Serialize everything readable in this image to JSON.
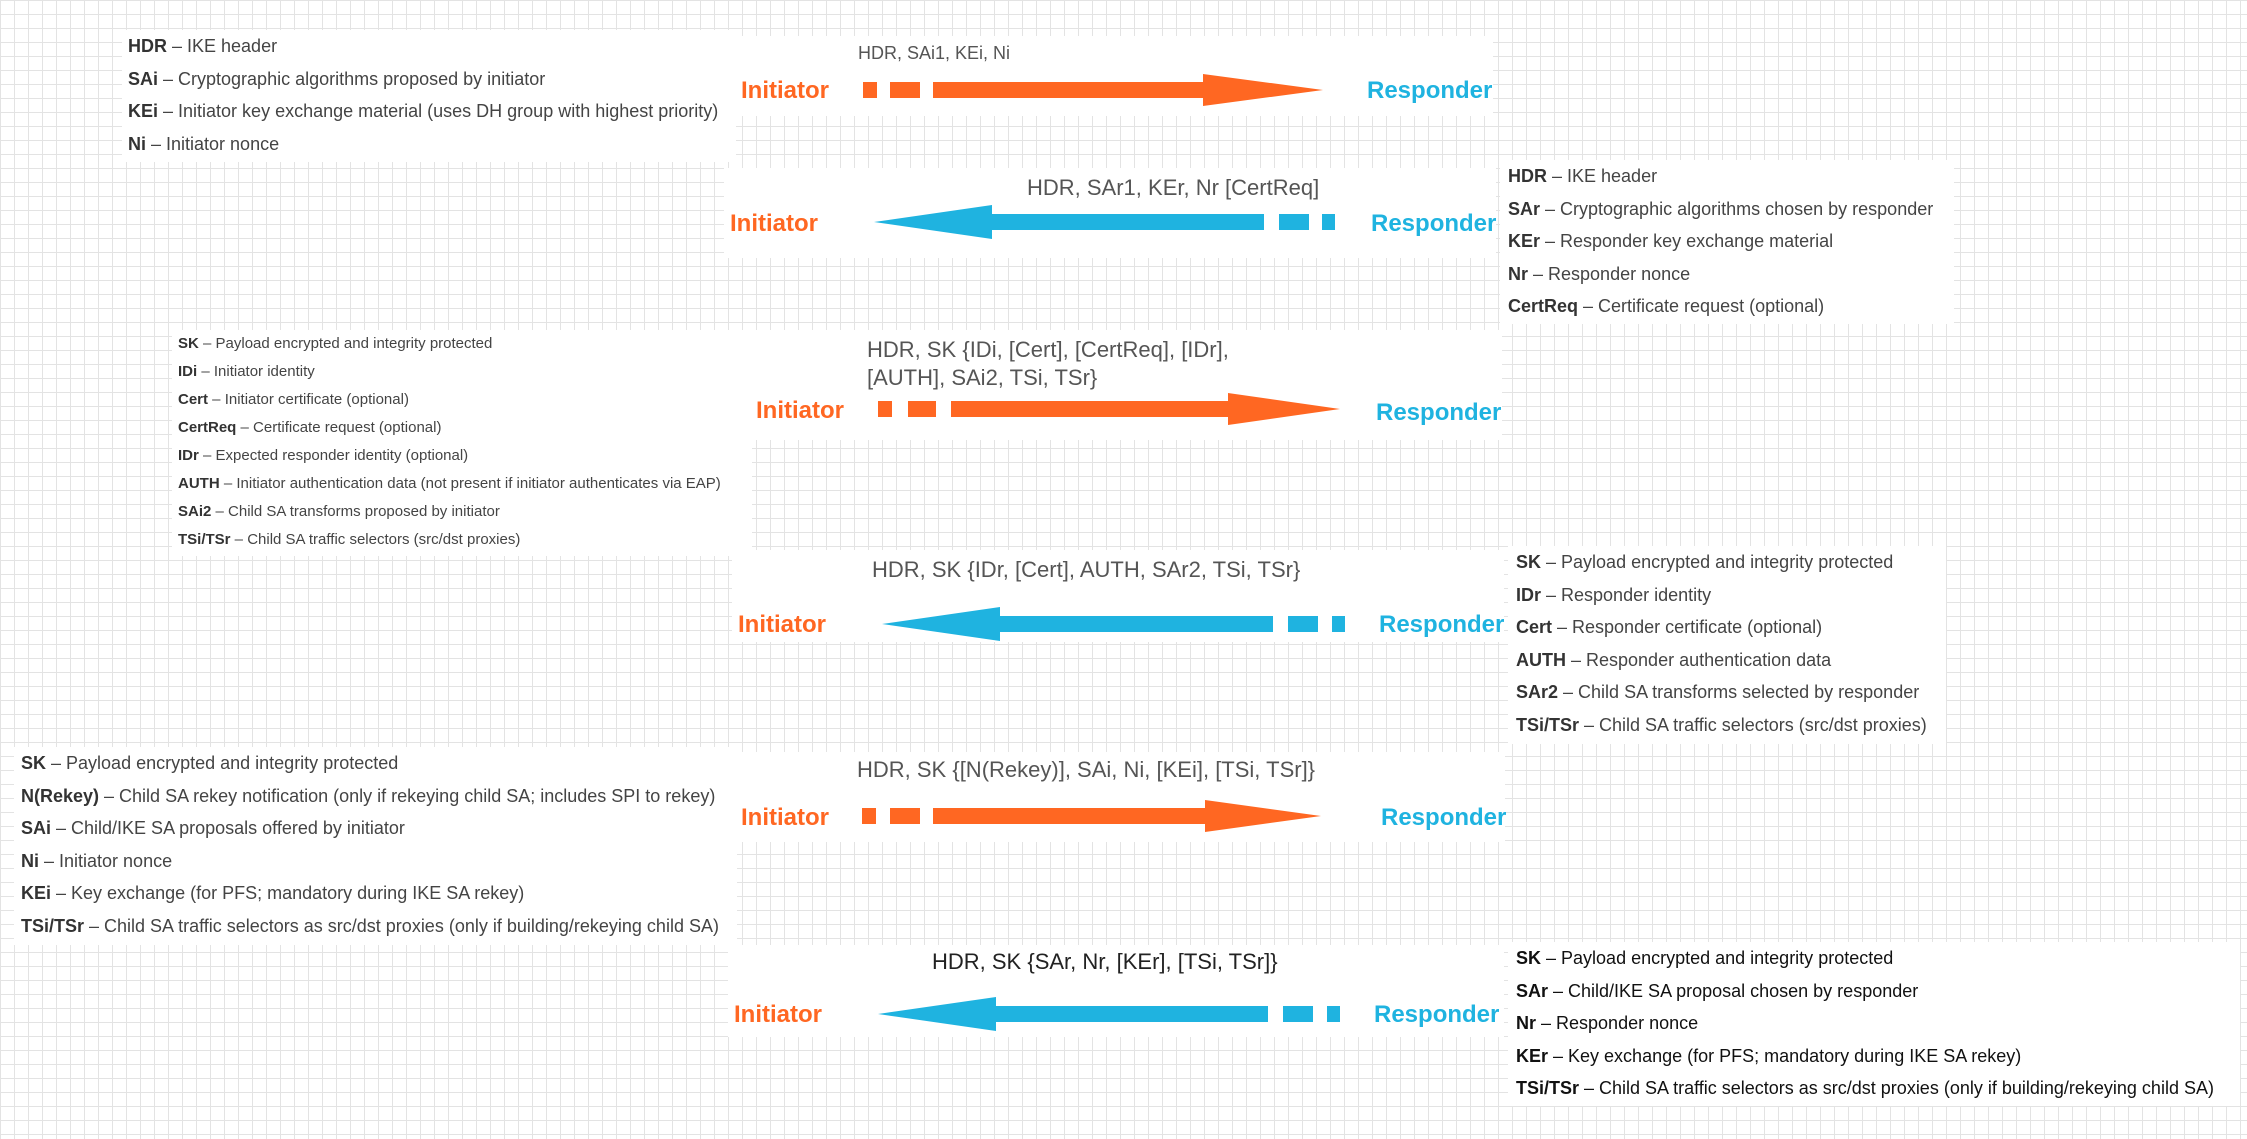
{
  "colors": {
    "initiator": "#ff6722",
    "responder": "#1fb3e0"
  },
  "exchanges": [
    {
      "message": "HDR, SAi1, KEi, Ni",
      "from_label": "Initiator",
      "to_label": "Responder",
      "direction": "initiator-to-responder",
      "legend": [
        {
          "term": "HDR",
          "desc": " – IKE header"
        },
        {
          "term": "SAi",
          "desc": " – Cryptographic algorithms proposed by initiator"
        },
        {
          "term": "KEi",
          "desc": " – Initiator key exchange material (uses DH group with highest priority)"
        },
        {
          "term": "Ni",
          "desc": " – Initiator nonce"
        }
      ]
    },
    {
      "message": "HDR, SAr1, KEr, Nr [CertReq]",
      "from_label": "Responder",
      "to_label": "Initiator",
      "direction": "responder-to-initiator",
      "legend": [
        {
          "term": "HDR",
          "desc": " – IKE header"
        },
        {
          "term": "SAr",
          "desc": " – Cryptographic algorithms chosen by responder"
        },
        {
          "term": "KEr",
          "desc": " – Responder key exchange material"
        },
        {
          "term": "Nr",
          "desc": " – Responder nonce"
        },
        {
          "term": "CertReq",
          "desc": " – Certificate request (optional)"
        }
      ]
    },
    {
      "message_line1": "HDR, SK {IDi, [Cert], [CertReq], [IDr],",
      "message_line2": "[AUTH], SAi2, TSi, TSr}",
      "from_label": "Initiator",
      "to_label": "Responder",
      "direction": "initiator-to-responder",
      "legend": [
        {
          "term": "SK",
          "desc": " – Payload encrypted and integrity protected"
        },
        {
          "term": "IDi",
          "desc": " – Initiator identity"
        },
        {
          "term": "Cert",
          "desc": " – Initiator certificate (optional)"
        },
        {
          "term": "CertReq",
          "desc": " – Certificate request (optional)"
        },
        {
          "term": "IDr",
          "desc": " – Expected responder identity (optional)"
        },
        {
          "term": "AUTH",
          "desc": " – Initiator authentication data (not present if initiator authenticates via EAP)"
        },
        {
          "term": "SAi2",
          "desc": " – Child SA transforms proposed by initiator"
        },
        {
          "term": "TSi/TSr",
          "desc": " – Child SA traffic selectors (src/dst proxies)"
        }
      ]
    },
    {
      "message": "HDR, SK {IDr, [Cert], AUTH, SAr2, TSi, TSr}",
      "from_label": "Responder",
      "to_label": "Initiator",
      "direction": "responder-to-initiator",
      "legend": [
        {
          "term": "SK",
          "desc": " – Payload encrypted and integrity protected"
        },
        {
          "term": "IDr",
          "desc": " – Responder identity"
        },
        {
          "term": "Cert",
          "desc": " – Responder certificate (optional)"
        },
        {
          "term": "AUTH",
          "desc": " – Responder authentication data"
        },
        {
          "term": "SAr2",
          "desc": " – Child SA transforms selected by responder"
        },
        {
          "term": "TSi/TSr",
          "desc": " – Child SA traffic selectors (src/dst proxies)"
        }
      ]
    },
    {
      "message": "HDR, SK {[N(Rekey)], SAi, Ni, [KEi], [TSi, TSr]}",
      "from_label": "Initiator",
      "to_label": "Responder",
      "direction": "initiator-to-responder",
      "legend": [
        {
          "term": "SK",
          "desc": " – Payload encrypted and integrity protected"
        },
        {
          "term": "N(Rekey)",
          "desc": " – Child SA rekey notification (only if rekeying child SA; includes SPI to rekey)"
        },
        {
          "term": "SAi",
          "desc": " – Child/IKE SA proposals offered by initiator"
        },
        {
          "term": "Ni",
          "desc": " – Initiator nonce"
        },
        {
          "term": "KEi",
          "desc": " – Key exchange (for PFS; mandatory during IKE SA rekey)"
        },
        {
          "term": "TSi/TSr",
          "desc": " – Child SA traffic selectors as src/dst proxies (only if building/rekeying child SA)"
        }
      ]
    },
    {
      "message": "HDR, SK {SAr, Nr, [KEr], [TSi, TSr]}",
      "from_label": "Responder",
      "to_label": "Initiator",
      "direction": "responder-to-initiator",
      "legend": [
        {
          "term": "SK",
          "desc": " – Payload encrypted and integrity protected"
        },
        {
          "term": "SAr",
          "desc": " – Child/IKE SA proposal chosen by responder"
        },
        {
          "term": "Nr",
          "desc": " – Responder nonce"
        },
        {
          "term": "KEr",
          "desc": " – Key exchange (for PFS; mandatory during IKE SA rekey)"
        },
        {
          "term": "TSi/TSr",
          "desc": " – Child SA traffic selectors as src/dst proxies (only if building/rekeying child SA)"
        }
      ]
    }
  ]
}
